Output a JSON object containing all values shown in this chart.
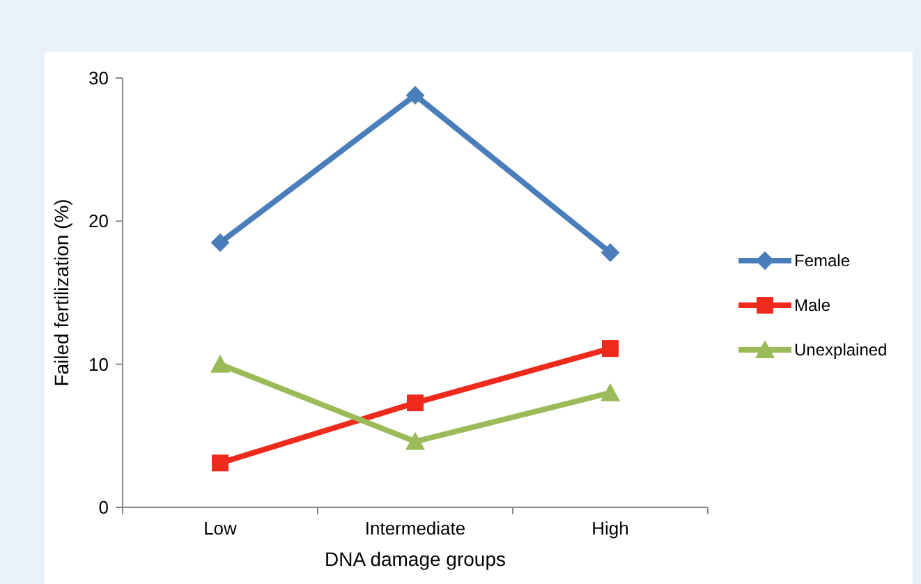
{
  "chart_data": {
    "type": "line",
    "xlabel": "DNA damage groups",
    "ylabel": "Failed fertilization (%)",
    "categories": [
      "Low",
      "Intermediate",
      "High"
    ],
    "ylim": [
      0,
      30
    ],
    "yticks": [
      0,
      10,
      20,
      30
    ],
    "grid": false,
    "legend": "right",
    "series": [
      {
        "name": "Female",
        "color": "#4a7ebb",
        "marker": "diamond",
        "values": [
          18.5,
          28.8,
          17.8
        ]
      },
      {
        "name": "Male",
        "color": "#ee2a1c",
        "marker": "square",
        "values": [
          3.1,
          7.3,
          11.1
        ]
      },
      {
        "name": "Unexplained",
        "color": "#9bbb59",
        "marker": "triangle",
        "values": [
          10.0,
          4.6,
          8.0
        ]
      }
    ]
  }
}
